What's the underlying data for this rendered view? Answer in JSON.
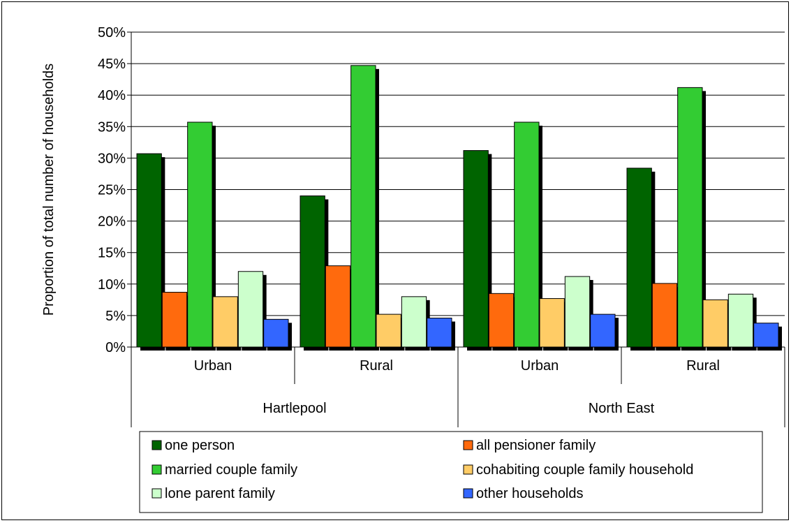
{
  "chart_data": {
    "type": "bar",
    "ylabel": "Proportion of total number of households",
    "ylim": [
      0,
      50
    ],
    "yticks": [
      "0%",
      "5%",
      "10%",
      "15%",
      "20%",
      "25%",
      "30%",
      "35%",
      "40%",
      "45%",
      "50%"
    ],
    "grid": true,
    "legend_position": "bottom",
    "groups": [
      {
        "name": "Hartlepool",
        "categories": [
          "Urban",
          "Rural"
        ]
      },
      {
        "name": "North East",
        "categories": [
          "Urban",
          "Rural"
        ]
      }
    ],
    "categories": [
      "Urban",
      "Rural",
      "Urban",
      "Rural"
    ],
    "series": [
      {
        "name": "one person",
        "color": "#006400",
        "values": [
          30.7,
          24.0,
          31.2,
          28.4
        ]
      },
      {
        "name": "all pensioner family",
        "color": "#ff6a0d",
        "values": [
          8.7,
          12.9,
          8.5,
          10.1
        ]
      },
      {
        "name": "married couple family",
        "color": "#33cc33",
        "values": [
          35.7,
          44.7,
          35.7,
          41.2
        ]
      },
      {
        "name": "cohabiting couple family household",
        "color": "#ffcc66",
        "values": [
          8.0,
          5.2,
          7.7,
          7.5
        ]
      },
      {
        "name": "lone parent family",
        "color": "#ccffcc",
        "values": [
          12.0,
          8.0,
          11.2,
          8.4
        ]
      },
      {
        "name": "other households",
        "color": "#3366ff",
        "values": [
          4.4,
          4.6,
          5.2,
          3.8
        ]
      }
    ]
  }
}
